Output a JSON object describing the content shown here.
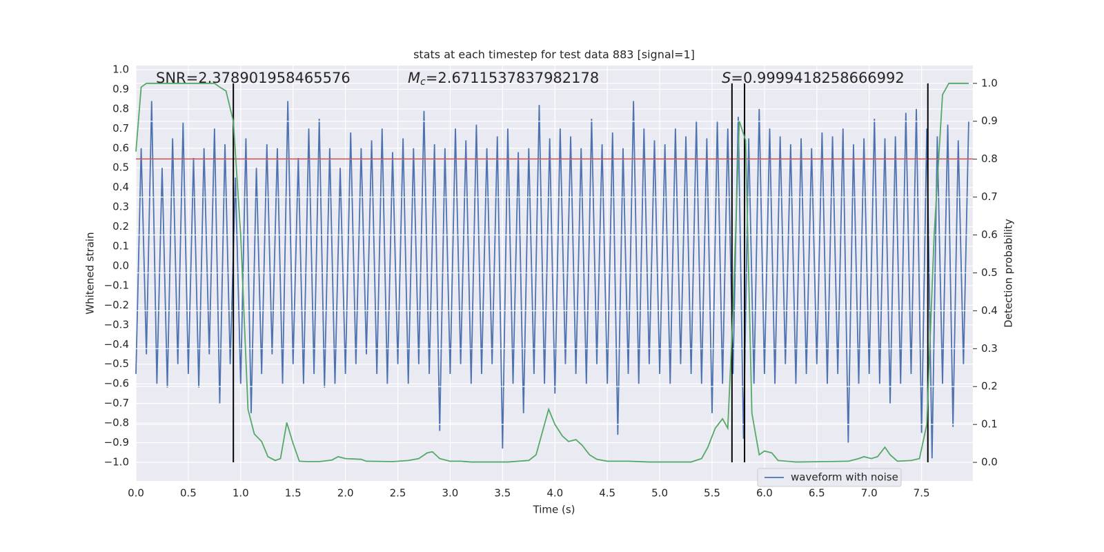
{
  "chart_data": {
    "type": "line",
    "title": "stats at each timestep for test data 883 [signal=1]",
    "xlabel": "Time (s)",
    "ylabel": "Whitened strain",
    "y2label": "Detection probability",
    "xlim": [
      0,
      7.99
    ],
    "ylim": [
      -1.095,
      1.021
    ],
    "y2lim": [
      -0.049,
      1.047
    ],
    "grid": true,
    "background": "#eaeaf2",
    "xticks": [
      {
        "value": 0,
        "label": "0.0"
      },
      {
        "value": 0.5,
        "label": "0.5"
      },
      {
        "value": 1,
        "label": "1.0"
      },
      {
        "value": 1.5,
        "label": "1.5"
      },
      {
        "value": 2,
        "label": "2.0"
      },
      {
        "value": 2.5,
        "label": "2.5"
      },
      {
        "value": 3,
        "label": "3.0"
      },
      {
        "value": 3.5,
        "label": "3.5"
      },
      {
        "value": 4,
        "label": "4.0"
      },
      {
        "value": 4.5,
        "label": "4.5"
      },
      {
        "value": 5,
        "label": "5.0"
      },
      {
        "value": 5.5,
        "label": "5.5"
      },
      {
        "value": 6,
        "label": "6.0"
      },
      {
        "value": 6.5,
        "label": "6.5"
      },
      {
        "value": 7,
        "label": "7.0"
      },
      {
        "value": 7.5,
        "label": "7.5"
      }
    ],
    "yticks": [
      {
        "value": -1,
        "label": "−1.0"
      },
      {
        "value": -0.9,
        "label": "−0.9"
      },
      {
        "value": -0.8,
        "label": "−0.8"
      },
      {
        "value": -0.7,
        "label": "−0.7"
      },
      {
        "value": -0.6,
        "label": "−0.6"
      },
      {
        "value": -0.5,
        "label": "−0.5"
      },
      {
        "value": -0.4,
        "label": "−0.4"
      },
      {
        "value": -0.3,
        "label": "−0.3"
      },
      {
        "value": -0.2,
        "label": "−0.2"
      },
      {
        "value": -0.1,
        "label": "−0.1"
      },
      {
        "value": 0,
        "label": "0.0"
      },
      {
        "value": 0.1,
        "label": "0.1"
      },
      {
        "value": 0.2,
        "label": "0.2"
      },
      {
        "value": 0.3,
        "label": "0.3"
      },
      {
        "value": 0.4,
        "label": "0.4"
      },
      {
        "value": 0.5,
        "label": "0.5"
      },
      {
        "value": 0.6,
        "label": "0.6"
      },
      {
        "value": 0.7,
        "label": "0.7"
      },
      {
        "value": 0.8,
        "label": "0.8"
      },
      {
        "value": 0.9,
        "label": "0.9"
      },
      {
        "value": 1,
        "label": "1.0"
      }
    ],
    "y2ticks": [
      {
        "value": 0,
        "label": "0.0"
      },
      {
        "value": 0.1,
        "label": "0.1"
      },
      {
        "value": 0.2,
        "label": "0.2"
      },
      {
        "value": 0.3,
        "label": "0.3"
      },
      {
        "value": 0.4,
        "label": "0.4"
      },
      {
        "value": 0.5,
        "label": "0.5"
      },
      {
        "value": 0.6,
        "label": "0.6"
      },
      {
        "value": 0.7,
        "label": "0.7"
      },
      {
        "value": 0.8,
        "label": "0.8"
      },
      {
        "value": 0.9,
        "label": "0.9"
      },
      {
        "value": 1,
        "label": "1.0"
      }
    ],
    "annotations": [
      {
        "text": "SNR=2.378901958465576"
      },
      {
        "symbol": "M",
        "subscript": "c",
        "text": "=2.6711537837982178"
      },
      {
        "symbol": "S",
        "text": "=0.9999418258666992"
      }
    ],
    "hline": {
      "y": 0.545,
      "color": "#c44e52"
    },
    "vlines": {
      "x": [
        0.93,
        5.69,
        5.81,
        7.56
      ],
      "ymin": -1.0,
      "ymax": 0.93,
      "color": "#000000"
    },
    "legend": "lower right",
    "series": [
      {
        "name": "waveform with noise",
        "color": "#4c72b0",
        "x": [
          0,
          0.05,
          0.1,
          0.15,
          0.2,
          0.25,
          0.3,
          0.35,
          0.4,
          0.45,
          0.5,
          0.55,
          0.6,
          0.65,
          0.7,
          0.75,
          0.8,
          0.85,
          0.9,
          0.95,
          1,
          1.05,
          1.1,
          1.15,
          1.2,
          1.25,
          1.3,
          1.35,
          1.4,
          1.45,
          1.5,
          1.55,
          1.6,
          1.65,
          1.7,
          1.75,
          1.8,
          1.85,
          1.9,
          1.95,
          2,
          2.05,
          2.1,
          2.15,
          2.2,
          2.25,
          2.3,
          2.35,
          2.4,
          2.45,
          2.5,
          2.55,
          2.6,
          2.65,
          2.7,
          2.75,
          2.8,
          2.85,
          2.9,
          2.95,
          3,
          3.05,
          3.1,
          3.15,
          3.2,
          3.25,
          3.3,
          3.35,
          3.4,
          3.45,
          3.5,
          3.55,
          3.6,
          3.65,
          3.7,
          3.75,
          3.8,
          3.85,
          3.9,
          3.95,
          4,
          4.05,
          4.1,
          4.15,
          4.2,
          4.25,
          4.3,
          4.35,
          4.4,
          4.45,
          4.5,
          4.55,
          4.6,
          4.65,
          4.7,
          4.75,
          4.8,
          4.85,
          4.9,
          4.95,
          5,
          5.05,
          5.1,
          5.15,
          5.2,
          5.25,
          5.3,
          5.35,
          5.4,
          5.45,
          5.5,
          5.55,
          5.6,
          5.65,
          5.7,
          5.75,
          5.8,
          5.85,
          5.9,
          5.95,
          6,
          6.05,
          6.1,
          6.15,
          6.2,
          6.25,
          6.3,
          6.35,
          6.4,
          6.45,
          6.5,
          6.55,
          6.6,
          6.65,
          6.7,
          6.75,
          6.8,
          6.85,
          6.9,
          6.95,
          7,
          7.05,
          7.1,
          7.15,
          7.2,
          7.25,
          7.3,
          7.35,
          7.4,
          7.45,
          7.5,
          7.55,
          7.6,
          7.65,
          7.7,
          7.75,
          7.8,
          7.85,
          7.9,
          7.95
        ],
        "values": [
          -0.55,
          0.6,
          -0.45,
          0.84,
          -0.6,
          0.5,
          -0.62,
          0.65,
          -0.5,
          0.73,
          -0.55,
          0.55,
          -0.62,
          0.6,
          -0.45,
          0.7,
          -0.7,
          0.62,
          -0.5,
          0.45,
          -0.6,
          0.65,
          -0.75,
          0.5,
          -0.55,
          0.62,
          -0.45,
          0.6,
          -0.6,
          0.84,
          -0.5,
          0.55,
          -0.6,
          0.7,
          -0.55,
          0.75,
          -0.62,
          0.6,
          -0.6,
          0.5,
          -0.55,
          0.68,
          -0.5,
          0.6,
          -0.45,
          0.64,
          -0.55,
          0.7,
          -0.6,
          0.58,
          -0.5,
          0.65,
          -0.6,
          0.6,
          -0.5,
          0.79,
          -0.55,
          0.62,
          -0.84,
          0.6,
          -0.55,
          0.7,
          -0.5,
          0.64,
          -0.6,
          0.72,
          -0.55,
          0.6,
          -0.5,
          0.66,
          -0.93,
          0.7,
          -0.6,
          0.58,
          -0.75,
          0.6,
          -0.55,
          0.82,
          -0.6,
          0.65,
          -0.65,
          0.7,
          -0.5,
          0.66,
          -0.55,
          0.6,
          -0.6,
          0.75,
          -0.5,
          0.62,
          -0.6,
          0.68,
          -0.86,
          0.6,
          -0.55,
          0.84,
          -0.6,
          0.7,
          -0.5,
          0.64,
          -0.55,
          0.62,
          -0.6,
          0.7,
          -0.5,
          0.66,
          -0.55,
          0.74,
          -0.6,
          0.65,
          -0.75,
          0.74,
          -0.6,
          0.7,
          -0.55,
          0.76,
          -0.88,
          0.65,
          -0.6,
          0.8,
          -0.55,
          0.7,
          -0.6,
          0.66,
          -0.5,
          0.62,
          -0.6,
          0.65,
          -0.55,
          0.6,
          -0.5,
          0.68,
          -0.6,
          0.66,
          -0.55,
          0.7,
          -0.9,
          0.62,
          -0.6,
          0.65,
          -0.55,
          0.75,
          -0.6,
          0.65,
          -0.7,
          0.66,
          -0.6,
          0.78,
          -0.55,
          0.8,
          -0.85,
          0.7,
          -0.98,
          0.66,
          -0.6,
          0.72,
          -0.82,
          0.64,
          -0.5,
          0.74
        ]
      },
      {
        "color": "#55a868",
        "axis": "y2",
        "x": [
          0,
          0.05,
          0.1,
          0.2,
          0.75,
          0.8,
          0.86,
          0.93,
          1,
          1.07,
          1.13,
          1.2,
          1.26,
          1.33,
          1.38,
          1.44,
          1.5,
          1.56,
          1.63,
          1.75,
          1.87,
          1.93,
          2,
          2.15,
          2.2,
          2.45,
          2.6,
          2.7,
          2.78,
          2.83,
          2.9,
          3,
          3.1,
          3.2,
          3.55,
          3.75,
          3.82,
          3.88,
          3.94,
          4,
          4.07,
          4.13,
          4.2,
          4.26,
          4.33,
          4.4,
          4.5,
          4.7,
          4.9,
          5.3,
          5.4,
          5.46,
          5.53,
          5.6,
          5.65,
          5.7,
          5.76,
          5.82,
          5.88,
          5.95,
          6,
          6.07,
          6.13,
          6.3,
          6.6,
          6.8,
          6.9,
          6.95,
          7.02,
          7.08,
          7.15,
          7.2,
          7.27,
          7.4,
          7.48,
          7.55,
          7.62,
          7.7,
          7.76,
          7.95
        ],
        "values": [
          0.82,
          0.99,
          1.0,
          1.0,
          1.0,
          0.99,
          0.98,
          0.9,
          0.6,
          0.14,
          0.075,
          0.055,
          0.015,
          0.005,
          0.01,
          0.105,
          0.05,
          0.003,
          0.002,
          0.002,
          0.006,
          0.015,
          0.01,
          0.008,
          0.003,
          0.002,
          0.005,
          0.01,
          0.025,
          0.028,
          0.01,
          0.003,
          0.003,
          0.001,
          0.001,
          0.005,
          0.02,
          0.08,
          0.14,
          0.1,
          0.07,
          0.055,
          0.06,
          0.045,
          0.02,
          0.008,
          0.003,
          0.003,
          0.001,
          0.001,
          0.01,
          0.04,
          0.09,
          0.115,
          0.09,
          0.4,
          0.9,
          0.85,
          0.13,
          0.02,
          0.03,
          0.025,
          0.005,
          0.001,
          0.002,
          0.003,
          0.01,
          0.015,
          0.01,
          0.015,
          0.04,
          0.02,
          0.003,
          0.005,
          0.01,
          0.1,
          0.6,
          0.97,
          1.0,
          1.0
        ]
      }
    ]
  }
}
